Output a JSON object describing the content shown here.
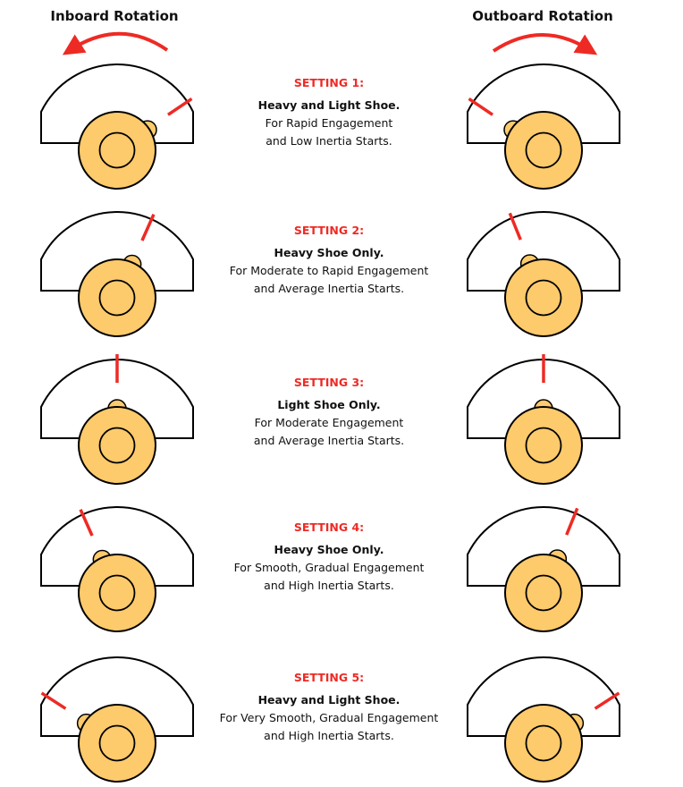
{
  "titles": {
    "left": "Inboard Rotation",
    "right": "Outboard Rotation"
  },
  "colors": {
    "indicator": "#ee2a24",
    "hub": "#fdca6c",
    "outline": "#000000"
  },
  "settings": [
    {
      "heading": "SETTING 1:",
      "shoe": "Heavy and Light Shoe.",
      "line1": "For Rapid Engagement",
      "line2": "and Low Inertia Starts."
    },
    {
      "heading": "SETTING 2:",
      "shoe": "Heavy Shoe Only.",
      "line1": "For Moderate to Rapid Engagement",
      "line2": "and Average Inertia Starts."
    },
    {
      "heading": "SETTING 3:",
      "shoe": "Light Shoe Only.",
      "line1": "For Moderate Engagement",
      "line2": "and Average Inertia Starts."
    },
    {
      "heading": "SETTING 4:",
      "shoe": "Heavy Shoe Only.",
      "line1": "For Smooth, Gradual Engagement",
      "line2": "and High Inertia Starts."
    },
    {
      "heading": "SETTING 5:",
      "shoe": "Heavy and Light Shoe.",
      "line1": "For Very Smooth, Gradual Engagement",
      "line2": "and High Inertia Starts."
    }
  ]
}
